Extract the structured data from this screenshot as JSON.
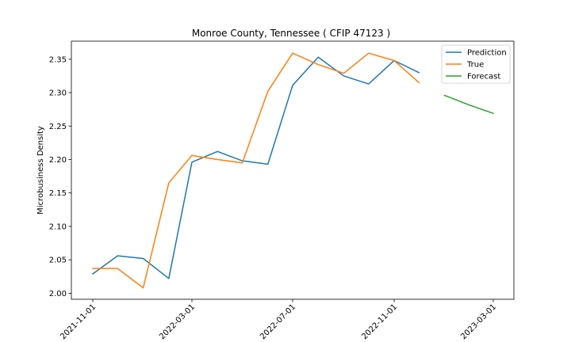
{
  "chart_data": {
    "type": "line",
    "title": "Monroe County, Tennessee ( CFIP 47123 )",
    "xlabel": "",
    "ylabel": "Microbusiness Density",
    "xlim": [
      "2021-10-06",
      "2023-03-26"
    ],
    "ylim": [
      1.991,
      2.377
    ],
    "x_ticks": [
      "2021-11-01",
      "2022-03-01",
      "2022-07-01",
      "2022-11-01",
      "2023-03-01"
    ],
    "y_ticks": [
      "2.00",
      "2.05",
      "2.10",
      "2.15",
      "2.20",
      "2.25",
      "2.30",
      "2.35"
    ],
    "grid": false,
    "legend_position": "upper right",
    "series": [
      {
        "name": "Prediction",
        "color": "#1f77b4",
        "x": [
          "2021-11-01",
          "2021-12-01",
          "2022-01-01",
          "2022-02-01",
          "2022-03-01",
          "2022-04-01",
          "2022-05-01",
          "2022-06-01",
          "2022-07-01",
          "2022-08-01",
          "2022-09-01",
          "2022-10-01",
          "2022-11-01",
          "2022-12-01"
        ],
        "values": [
          2.029,
          2.056,
          2.052,
          2.022,
          2.196,
          2.212,
          2.198,
          2.193,
          2.311,
          2.353,
          2.325,
          2.313,
          2.348,
          2.33
        ]
      },
      {
        "name": "True",
        "color": "#ff7f0e",
        "x": [
          "2021-11-01",
          "2021-12-01",
          "2022-01-01",
          "2022-02-01",
          "2022-03-01",
          "2022-04-01",
          "2022-05-01",
          "2022-06-01",
          "2022-07-01",
          "2022-08-01",
          "2022-09-01",
          "2022-10-01",
          "2022-11-01",
          "2022-12-01"
        ],
        "values": [
          2.037,
          2.037,
          2.008,
          2.165,
          2.206,
          2.2,
          2.195,
          2.302,
          2.359,
          2.342,
          2.329,
          2.359,
          2.348,
          2.315
        ]
      },
      {
        "name": "Forecast",
        "color": "#2ca02c",
        "x": [
          "2023-01-01",
          "2023-02-01",
          "2023-03-01"
        ],
        "values": [
          2.296,
          2.281,
          2.269
        ]
      }
    ]
  }
}
